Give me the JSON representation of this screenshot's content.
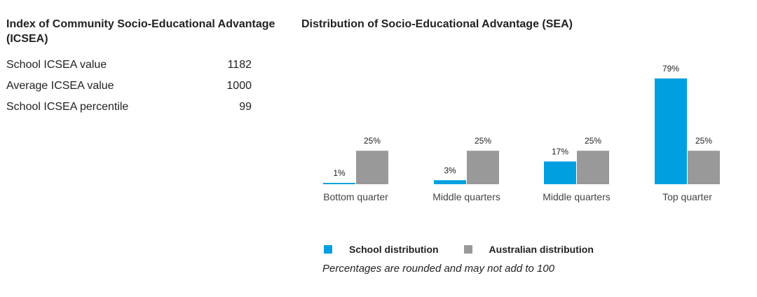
{
  "icsea": {
    "title": "Index of Community Socio-Educational Advantage (ICSEA)",
    "rows": [
      {
        "label": "School ICSEA value",
        "value": "1182"
      },
      {
        "label": "Average ICSEA value",
        "value": "1000"
      },
      {
        "label": "School ICSEA percentile",
        "value": "99"
      }
    ]
  },
  "chart_data": {
    "type": "bar",
    "title": "Distribution of Socio-Educational Advantage (SEA)",
    "categories": [
      "Bottom quarter",
      "Middle quarters",
      "Middle quarters",
      "Top quarter"
    ],
    "series": [
      {
        "name": "School distribution",
        "values": [
          1,
          3,
          17,
          79
        ],
        "labels": [
          "1%",
          "3%",
          "17%",
          "79%"
        ],
        "color": "#00a0e0"
      },
      {
        "name": "Australian distribution",
        "values": [
          25,
          25,
          25,
          25
        ],
        "labels": [
          "25%",
          "25%",
          "25%",
          "25%"
        ],
        "color": "#999999"
      }
    ],
    "ylim": [
      0,
      79
    ],
    "grid": false,
    "legend_position": "bottom"
  },
  "note": "Percentages are rounded and may not add to 100"
}
